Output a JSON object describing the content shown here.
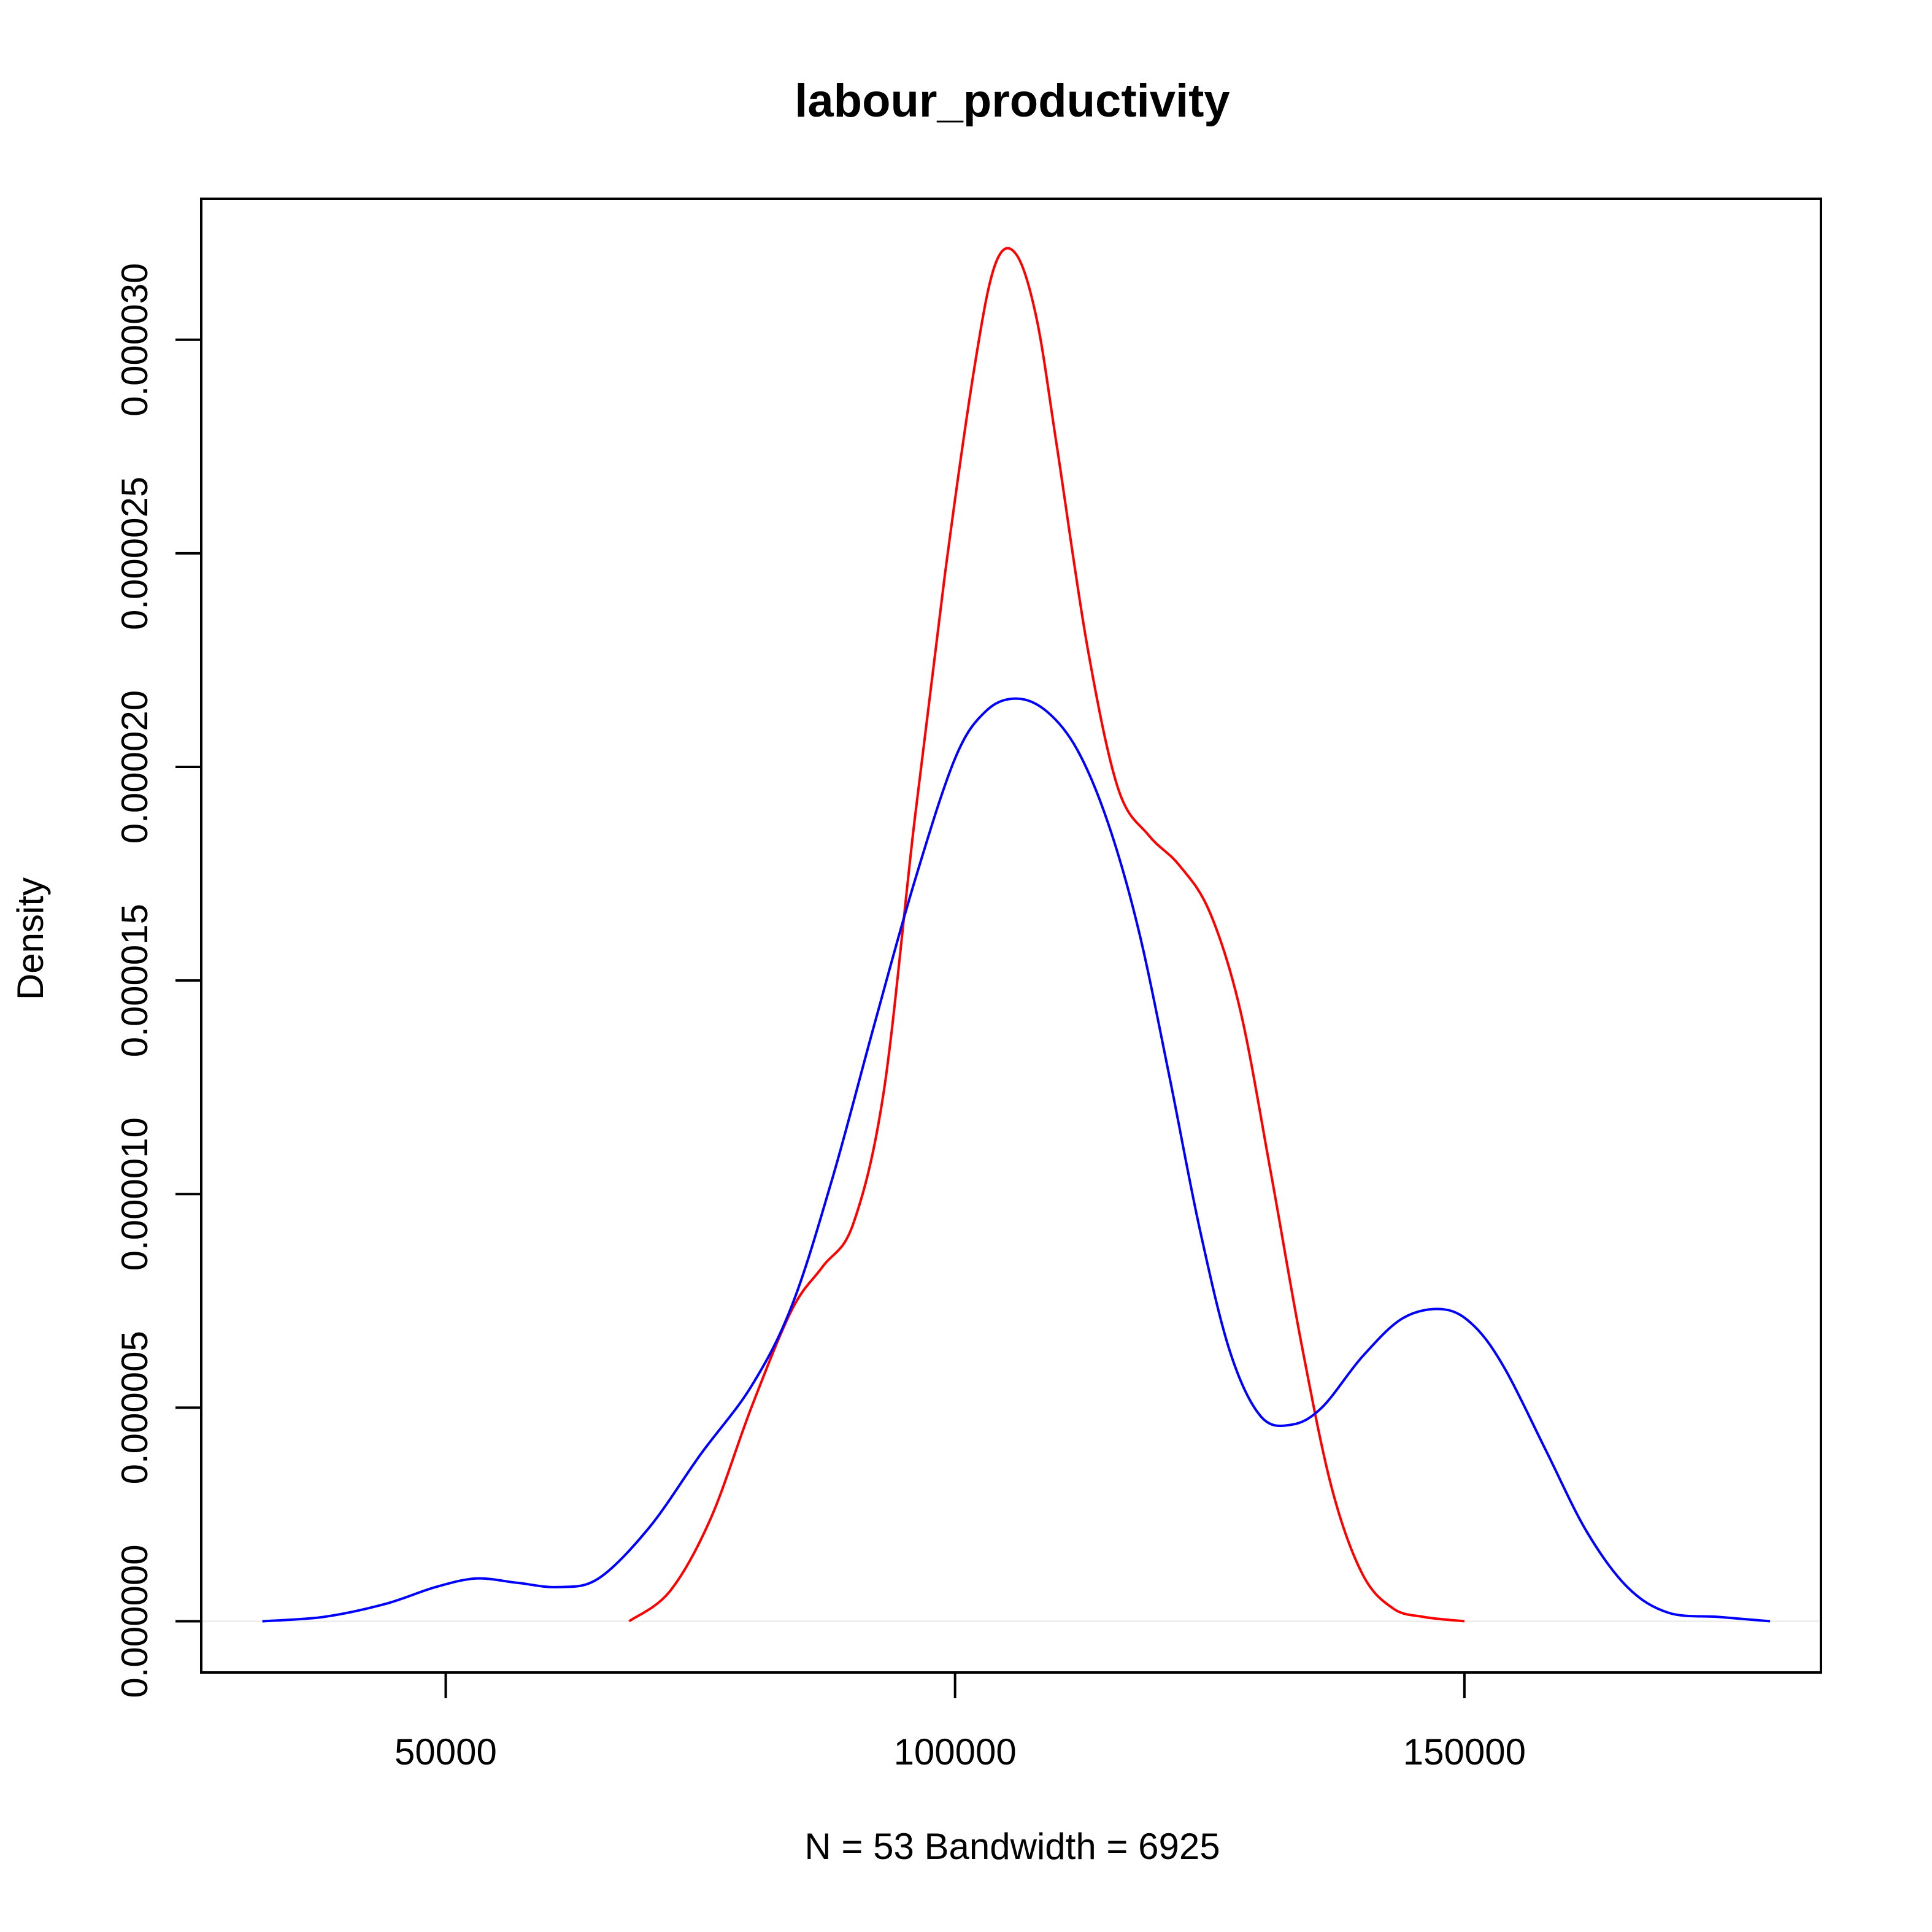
{
  "chart_data": {
    "type": "line",
    "title": "labour_productivity",
    "xlabel": "N = 53   Bandwidth = 6925",
    "ylabel": "Density",
    "xlim": [
      26000,
      185000
    ],
    "ylim": [
      -1.2e-06,
      3.33e-05
    ],
    "x_ticks": [
      50000,
      100000,
      150000
    ],
    "x_tick_labels": [
      "50000",
      "100000",
      "150000"
    ],
    "y_ticks": [
      0,
      5e-06,
      1e-05,
      1.5e-05,
      2e-05,
      2.5e-05,
      3e-05
    ],
    "y_tick_labels": [
      "0.000000",
      "0.000005",
      "0.000010",
      "0.000015",
      "0.000020",
      "0.000025",
      "0.000030"
    ],
    "grid": false,
    "zero_line": true,
    "colors": {
      "zero_line": "#e8e8e8",
      "frame": "#000000"
    },
    "series": [
      {
        "color": "#ff0000",
        "x": [
          68000,
          72000,
          76000,
          80000,
          84000,
          87000,
          90000,
          93000,
          96000,
          99000,
          102000,
          104000,
          106000,
          108000,
          110000,
          113000,
          116000,
          119000,
          122000,
          125000,
          128000,
          131000,
          134000,
          137000,
          140000,
          143000,
          146000,
          150000
        ],
        "y": [
          0,
          7e-07,
          2.4e-06,
          5e-06,
          7.3e-06,
          8.3e-06,
          9.3e-06,
          1.24e-05,
          1.87e-05,
          2.45e-05,
          2.95e-05,
          3.18e-05,
          3.2e-05,
          3.05e-05,
          2.75e-05,
          2.28e-05,
          1.95e-05,
          1.84e-05,
          1.77e-05,
          1.66e-05,
          1.43e-05,
          1.05e-05,
          6.5e-06,
          3.1e-06,
          1.1e-06,
          3e-07,
          1e-07,
          0
        ]
      },
      {
        "color": "#0000ff",
        "x": [
          32000,
          38000,
          44000,
          49000,
          53000,
          57000,
          61000,
          65000,
          70000,
          75000,
          80000,
          84000,
          88000,
          92000,
          96000,
          100000,
          103000,
          106000,
          109000,
          112000,
          115000,
          118000,
          121000,
          124000,
          127000,
          130000,
          133000,
          136000,
          140000,
          144000,
          148000,
          151000,
          154000,
          158000,
          162000,
          166000,
          170000,
          175000,
          180000
        ],
        "y": [
          0,
          1e-07,
          4e-07,
          8e-07,
          1e-06,
          9e-07,
          8e-07,
          1e-06,
          2.2e-06,
          3.9e-06,
          5.5e-06,
          7.4e-06,
          1.04e-05,
          1.39e-05,
          1.73e-05,
          2.02e-05,
          2.13e-05,
          2.16e-05,
          2.13e-05,
          2.04e-05,
          1.87e-05,
          1.62e-05,
          1.28e-05,
          9.2e-06,
          6.3e-06,
          4.8e-06,
          4.6e-06,
          5e-06,
          6.2e-06,
          7.1e-06,
          7.3e-06,
          6.9e-06,
          5.9e-06,
          4e-06,
          2.1e-06,
          8e-07,
          2e-07,
          1e-07,
          0
        ]
      }
    ]
  }
}
